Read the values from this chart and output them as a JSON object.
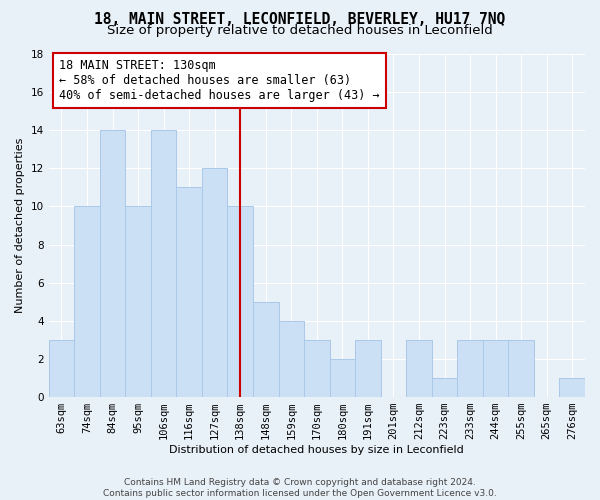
{
  "title": "18, MAIN STREET, LECONFIELD, BEVERLEY, HU17 7NQ",
  "subtitle": "Size of property relative to detached houses in Leconfield",
  "xlabel": "Distribution of detached houses by size in Leconfield",
  "ylabel": "Number of detached properties",
  "footer": "Contains HM Land Registry data © Crown copyright and database right 2024.\nContains public sector information licensed under the Open Government Licence v3.0.",
  "bar_labels": [
    "63sqm",
    "74sqm",
    "84sqm",
    "95sqm",
    "106sqm",
    "116sqm",
    "127sqm",
    "138sqm",
    "148sqm",
    "159sqm",
    "170sqm",
    "180sqm",
    "191sqm",
    "201sqm",
    "212sqm",
    "223sqm",
    "233sqm",
    "244sqm",
    "255sqm",
    "265sqm",
    "276sqm"
  ],
  "bar_values": [
    3,
    10,
    14,
    10,
    14,
    11,
    12,
    10,
    5,
    4,
    3,
    2,
    3,
    0,
    3,
    1,
    3,
    3,
    3,
    0,
    1
  ],
  "bar_color": "#cce0f5",
  "bar_edge_color": "#aac8e8",
  "annotation_line1": "18 MAIN STREET: 130sqm",
  "annotation_line2": "← 58% of detached houses are smaller (63)",
  "annotation_line3": "40% of semi-detached houses are larger (43) →",
  "vline_x": 7.0,
  "vline_color": "#cc0000",
  "ylim": [
    0,
    18
  ],
  "yticks": [
    0,
    2,
    4,
    6,
    8,
    10,
    12,
    14,
    16,
    18
  ],
  "background_color": "#e8f0f8",
  "grid_color": "#ffffff",
  "title_fontsize": 10.5,
  "subtitle_fontsize": 9.5,
  "axis_label_fontsize": 8,
  "tick_fontsize": 7.5,
  "footer_fontsize": 6.5,
  "annot_fontsize": 8.5
}
